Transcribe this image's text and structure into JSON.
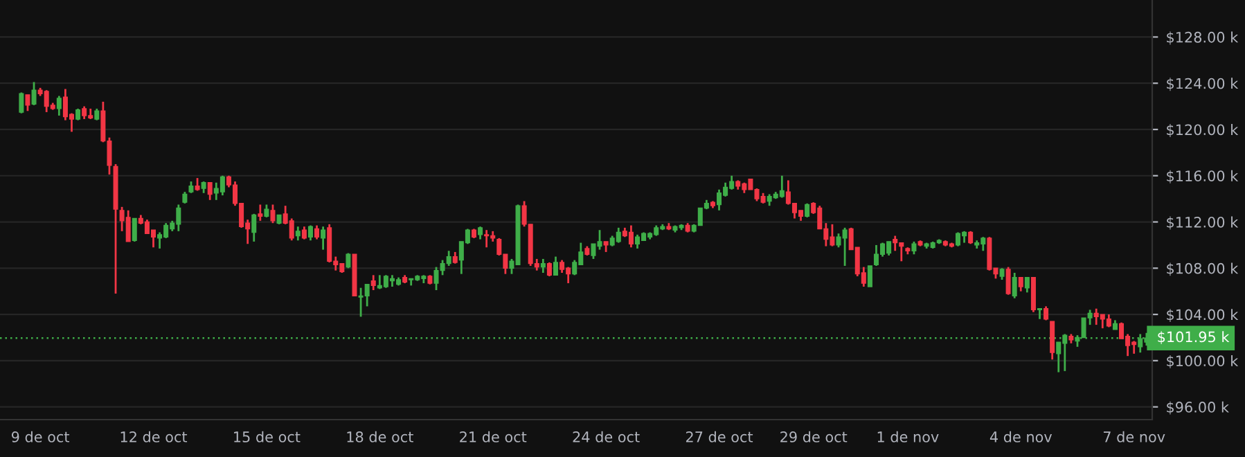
{
  "chart_data": {
    "type": "candlestick",
    "categories": [
      null,
      null,
      null,
      "9 de oct",
      null,
      null,
      null,
      null,
      null,
      null,
      null,
      null,
      null,
      null,
      null,
      null,
      null,
      null,
      null,
      null,
      null,
      "12 de oct",
      null,
      null,
      null,
      null,
      null,
      null,
      null,
      null,
      null,
      null,
      null,
      null,
      null,
      null,
      null,
      null,
      null,
      "15 de oct",
      null,
      null,
      null,
      null,
      null,
      null,
      null,
      null,
      null,
      null,
      null,
      null,
      null,
      null,
      null,
      null,
      null,
      "18 de oct",
      null,
      null,
      null,
      null,
      null,
      null,
      null,
      null,
      null,
      null,
      null,
      null,
      null,
      null,
      null,
      null,
      null,
      "21 de oct",
      null,
      null,
      null,
      null,
      null,
      null,
      null,
      null,
      null,
      null,
      null,
      null,
      null,
      null,
      null,
      null,
      null,
      "24 de oct",
      null,
      null,
      null,
      null,
      null,
      null,
      null,
      null,
      null,
      null,
      null,
      null,
      null,
      null,
      null,
      null,
      null,
      "27 de oct",
      null,
      null,
      null,
      null,
      null,
      null,
      null,
      null,
      null,
      null,
      null,
      null,
      null,
      null,
      "29 de oct",
      null,
      null,
      null,
      null,
      null,
      null,
      null,
      null,
      null,
      null,
      null,
      null,
      null,
      null,
      "1 de nov",
      null,
      null,
      null,
      null,
      null,
      null,
      null,
      null,
      null,
      null,
      null,
      null,
      null,
      null,
      null,
      null,
      null,
      "4 de nov",
      null,
      null,
      null,
      null,
      null,
      null,
      null,
      null,
      null,
      null,
      null,
      null,
      null,
      null,
      null,
      null,
      null,
      "7 de nov",
      null,
      null
    ],
    "ohlc": [
      [
        121.5,
        123.2,
        121.4,
        123.1
      ],
      [
        123.0,
        123.0,
        121.6,
        122.1
      ],
      [
        122.2,
        124.1,
        122.1,
        123.4
      ],
      [
        123.4,
        123.6,
        122.9,
        123.1
      ],
      [
        123.3,
        123.4,
        121.5,
        122.0
      ],
      [
        122.1,
        122.3,
        121.7,
        121.8
      ],
      [
        121.8,
        122.9,
        121.2,
        122.7
      ],
      [
        122.8,
        123.5,
        120.8,
        121.1
      ],
      [
        121.3,
        121.4,
        119.8,
        120.9
      ],
      [
        120.9,
        121.8,
        120.8,
        121.7
      ],
      [
        121.8,
        122.0,
        120.9,
        121.2
      ],
      [
        121.2,
        121.8,
        120.9,
        121.0
      ],
      [
        120.9,
        121.8,
        120.8,
        121.6
      ],
      [
        121.6,
        122.4,
        118.9,
        119.0
      ],
      [
        119.0,
        119.3,
        116.1,
        116.9
      ],
      [
        116.8,
        117.0,
        105.8,
        113.1
      ],
      [
        113.0,
        113.3,
        111.2,
        112.1
      ],
      [
        112.4,
        113.0,
        110.3,
        110.3
      ],
      [
        110.4,
        112.3,
        110.3,
        112.3
      ],
      [
        112.3,
        112.6,
        111.8,
        111.9
      ],
      [
        112.0,
        112.2,
        111.0,
        111.0
      ],
      [
        111.3,
        111.3,
        109.8,
        110.7
      ],
      [
        110.6,
        111.1,
        109.7,
        110.9
      ],
      [
        110.7,
        111.9,
        110.6,
        111.7
      ],
      [
        111.4,
        112.1,
        111.2,
        111.9
      ],
      [
        111.8,
        113.5,
        111.2,
        113.2
      ],
      [
        113.7,
        114.6,
        113.6,
        114.4
      ],
      [
        114.6,
        115.5,
        114.5,
        115.1
      ],
      [
        115.1,
        115.8,
        114.7,
        114.8
      ],
      [
        114.9,
        115.5,
        114.5,
        115.4
      ],
      [
        115.4,
        115.4,
        113.9,
        114.4
      ],
      [
        114.5,
        115.4,
        113.9,
        114.9
      ],
      [
        114.6,
        116.0,
        114.3,
        115.9
      ],
      [
        115.9,
        116.0,
        115.0,
        115.2
      ],
      [
        115.2,
        115.5,
        113.4,
        113.6
      ],
      [
        113.6,
        113.6,
        111.5,
        111.6
      ],
      [
        111.9,
        112.2,
        110.1,
        111.4
      ],
      [
        111.1,
        112.7,
        110.3,
        112.6
      ],
      [
        112.7,
        113.5,
        112.1,
        112.5
      ],
      [
        112.5,
        113.5,
        112.4,
        113.1
      ],
      [
        113.0,
        113.5,
        111.9,
        112.1
      ],
      [
        111.9,
        112.6,
        111.8,
        112.6
      ],
      [
        112.7,
        113.4,
        111.8,
        111.9
      ],
      [
        112.1,
        112.3,
        110.4,
        110.6
      ],
      [
        110.8,
        111.6,
        110.4,
        111.2
      ],
      [
        111.3,
        111.6,
        110.5,
        110.6
      ],
      [
        110.7,
        111.7,
        110.4,
        111.6
      ],
      [
        111.4,
        111.7,
        110.5,
        110.7
      ],
      [
        110.6,
        111.6,
        109.6,
        111.3
      ],
      [
        111.5,
        111.8,
        108.5,
        108.6
      ],
      [
        108.6,
        109.0,
        107.8,
        108.3
      ],
      [
        108.4,
        108.4,
        107.6,
        107.7
      ],
      [
        108.1,
        109.3,
        108.0,
        109.2
      ],
      [
        109.2,
        109.2,
        105.6,
        105.6
      ],
      [
        105.5,
        106.3,
        103.8,
        105.6
      ],
      [
        105.6,
        106.6,
        104.7,
        106.6
      ],
      [
        106.9,
        107.4,
        106.1,
        106.5
      ],
      [
        106.3,
        107.4,
        106.2,
        106.5
      ],
      [
        106.4,
        107.4,
        106.3,
        107.3
      ],
      [
        106.9,
        107.4,
        106.4,
        107.1
      ],
      [
        106.6,
        107.2,
        106.5,
        107.0
      ],
      [
        107.2,
        107.4,
        106.7,
        106.8
      ],
      [
        107.0,
        107.1,
        106.5,
        107.1
      ],
      [
        107.0,
        107.4,
        106.9,
        107.3
      ],
      [
        107.1,
        107.4,
        106.7,
        107.3
      ],
      [
        107.3,
        107.4,
        106.6,
        106.7
      ],
      [
        106.7,
        108.1,
        106.1,
        107.8
      ],
      [
        107.8,
        108.7,
        107.4,
        108.4
      ],
      [
        108.4,
        109.5,
        108.2,
        109.0
      ],
      [
        109.0,
        109.4,
        108.4,
        108.5
      ],
      [
        108.7,
        110.3,
        107.5,
        110.3
      ],
      [
        110.2,
        111.4,
        110.1,
        111.3
      ],
      [
        111.3,
        111.4,
        110.6,
        110.7
      ],
      [
        110.9,
        111.6,
        110.5,
        111.5
      ],
      [
        110.9,
        111.3,
        109.8,
        110.8
      ],
      [
        110.8,
        111.2,
        110.3,
        110.6
      ],
      [
        110.5,
        110.6,
        109.1,
        109.2
      ],
      [
        109.2,
        109.2,
        107.5,
        108.0
      ],
      [
        108.0,
        108.8,
        107.5,
        108.6
      ],
      [
        108.3,
        113.5,
        108.3,
        113.4
      ],
      [
        113.4,
        113.8,
        111.6,
        111.8
      ],
      [
        111.8,
        111.8,
        108.2,
        108.4
      ],
      [
        108.4,
        108.8,
        107.8,
        108.1
      ],
      [
        108.1,
        108.8,
        107.6,
        108.4
      ],
      [
        108.4,
        108.5,
        107.3,
        107.4
      ],
      [
        107.4,
        109.0,
        107.4,
        108.5
      ],
      [
        108.5,
        108.7,
        107.6,
        107.9
      ],
      [
        108.0,
        108.1,
        106.7,
        107.5
      ],
      [
        107.5,
        108.7,
        107.4,
        108.5
      ],
      [
        108.3,
        110.2,
        108.3,
        109.4
      ],
      [
        109.7,
        109.9,
        109.1,
        109.2
      ],
      [
        109.1,
        110.1,
        108.8,
        110.1
      ],
      [
        109.9,
        111.3,
        109.6,
        110.3
      ],
      [
        110.3,
        110.3,
        109.4,
        110.0
      ],
      [
        110.0,
        110.8,
        109.9,
        110.6
      ],
      [
        110.3,
        111.5,
        110.2,
        111.1
      ],
      [
        111.2,
        111.5,
        110.7,
        110.8
      ],
      [
        111.1,
        111.7,
        109.8,
        110.1
      ],
      [
        110.1,
        110.9,
        109.7,
        110.7
      ],
      [
        110.4,
        111.1,
        110.4,
        111.0
      ],
      [
        110.7,
        111.1,
        110.5,
        111.0
      ],
      [
        110.9,
        111.7,
        110.8,
        111.5
      ],
      [
        111.4,
        111.8,
        111.3,
        111.6
      ],
      [
        111.6,
        111.9,
        111.3,
        111.4
      ],
      [
        111.3,
        111.7,
        111.1,
        111.6
      ],
      [
        111.5,
        111.8,
        111.3,
        111.7
      ],
      [
        111.7,
        111.9,
        111.1,
        111.2
      ],
      [
        111.2,
        111.8,
        111.1,
        111.7
      ],
      [
        111.7,
        113.2,
        111.7,
        113.2
      ],
      [
        113.2,
        113.9,
        113.1,
        113.6
      ],
      [
        113.7,
        113.8,
        113.2,
        113.4
      ],
      [
        113.5,
        114.8,
        113.0,
        114.5
      ],
      [
        114.3,
        115.4,
        114.2,
        115.0
      ],
      [
        114.9,
        116.0,
        114.8,
        115.5
      ],
      [
        115.5,
        115.6,
        114.8,
        115.1
      ],
      [
        115.3,
        115.4,
        114.5,
        114.8
      ],
      [
        115.7,
        115.7,
        114.8,
        114.8
      ],
      [
        114.8,
        114.9,
        113.8,
        114.0
      ],
      [
        114.2,
        114.5,
        113.6,
        113.7
      ],
      [
        113.8,
        114.4,
        113.4,
        114.2
      ],
      [
        114.1,
        114.6,
        114.0,
        114.4
      ],
      [
        114.2,
        116.0,
        114.1,
        114.7
      ],
      [
        114.6,
        115.6,
        113.5,
        113.6
      ],
      [
        113.6,
        113.6,
        112.3,
        112.8
      ],
      [
        113.0,
        113.0,
        112.1,
        112.5
      ],
      [
        112.5,
        113.6,
        112.4,
        113.5
      ],
      [
        113.6,
        113.7,
        112.7,
        112.8
      ],
      [
        113.2,
        113.4,
        111.4,
        111.4
      ],
      [
        111.4,
        111.9,
        109.9,
        110.5
      ],
      [
        110.7,
        111.8,
        109.9,
        110.0
      ],
      [
        110.0,
        111.0,
        109.8,
        110.7
      ],
      [
        110.6,
        111.5,
        108.2,
        111.3
      ],
      [
        111.4,
        111.5,
        109.6,
        109.6
      ],
      [
        109.8,
        109.8,
        107.3,
        107.5
      ],
      [
        107.6,
        108.1,
        106.4,
        106.7
      ],
      [
        106.4,
        108.2,
        106.4,
        108.2
      ],
      [
        108.3,
        110.0,
        108.2,
        109.2
      ],
      [
        109.2,
        110.2,
        109.0,
        110.1
      ],
      [
        109.3,
        110.3,
        109.1,
        110.3
      ],
      [
        110.5,
        110.8,
        109.5,
        110.2
      ],
      [
        110.2,
        110.2,
        108.6,
        109.9
      ],
      [
        109.7,
        109.8,
        109.2,
        109.5
      ],
      [
        109.5,
        110.3,
        109.2,
        110.1
      ],
      [
        110.3,
        110.4,
        109.9,
        110.0
      ],
      [
        109.9,
        110.2,
        109.7,
        110.1
      ],
      [
        109.8,
        110.3,
        109.7,
        110.2
      ],
      [
        110.2,
        110.5,
        110.1,
        110.4
      ],
      [
        110.3,
        110.4,
        109.9,
        110.0
      ],
      [
        110.1,
        110.2,
        109.8,
        109.9
      ],
      [
        110.0,
        111.1,
        109.9,
        111.0
      ],
      [
        110.8,
        111.2,
        110.2,
        111.1
      ],
      [
        111.1,
        111.2,
        110.1,
        110.2
      ],
      [
        110.0,
        110.4,
        109.7,
        110.2
      ],
      [
        110.1,
        110.7,
        109.5,
        110.6
      ],
      [
        110.6,
        110.7,
        107.8,
        107.9
      ],
      [
        108.0,
        108.0,
        107.1,
        107.5
      ],
      [
        107.3,
        108.0,
        107.0,
        107.9
      ],
      [
        107.9,
        108.1,
        105.7,
        105.8
      ],
      [
        105.6,
        107.6,
        105.4,
        107.2
      ],
      [
        107.2,
        107.2,
        106.0,
        106.4
      ],
      [
        106.3,
        107.2,
        105.9,
        107.2
      ],
      [
        107.2,
        107.2,
        104.2,
        104.4
      ],
      [
        104.4,
        104.5,
        103.6,
        104.5
      ],
      [
        104.5,
        104.7,
        103.5,
        103.6
      ],
      [
        103.4,
        103.4,
        100.1,
        100.7
      ],
      [
        100.6,
        101.6,
        99.0,
        101.6
      ],
      [
        101.5,
        102.3,
        99.1,
        102.2
      ],
      [
        102.1,
        102.3,
        101.5,
        101.8
      ],
      [
        101.7,
        102.2,
        101.2,
        102.0
      ],
      [
        102.0,
        103.7,
        102.0,
        103.7
      ],
      [
        103.7,
        104.4,
        103.1,
        104.1
      ],
      [
        104.1,
        104.5,
        103.1,
        103.8
      ],
      [
        104.0,
        104.0,
        102.8,
        103.6
      ],
      [
        103.6,
        104.0,
        102.9,
        103.0
      ],
      [
        102.7,
        103.5,
        102.7,
        103.2
      ],
      [
        103.2,
        103.3,
        101.9,
        101.9
      ],
      [
        102.1,
        102.3,
        100.4,
        101.3
      ],
      [
        101.6,
        101.7,
        100.6,
        101.4
      ],
      [
        101.2,
        102.3,
        100.7,
        101.9
      ],
      [
        101.6,
        102.4,
        101.3,
        101.95
      ]
    ],
    "colors": [
      "#3fae49",
      "#f23645",
      "#3fae49",
      "#f23645",
      "#f23645",
      "#f23645",
      "#3fae49",
      "#f23645",
      "#f23645",
      "#3fae49",
      "#f23645",
      "#f23645",
      "#3fae49",
      "#f23645",
      "#f23645",
      "#f23645",
      "#f23645",
      "#f23645",
      "#3fae49",
      "#f23645",
      "#f23645",
      "#f23645",
      "#3fae49",
      "#3fae49",
      "#3fae49",
      "#3fae49",
      "#3fae49",
      "#3fae49",
      "#f23645",
      "#3fae49",
      "#f23645",
      "#3fae49",
      "#3fae49",
      "#f23645",
      "#f23645",
      "#f23645",
      "#f23645",
      "#3fae49",
      "#f23645",
      "#3fae49",
      "#f23645",
      "#3fae49",
      "#f23645",
      "#f23645",
      "#3fae49",
      "#f23645",
      "#3fae49",
      "#f23645",
      "#3fae49",
      "#f23645",
      "#f23645",
      "#f23645",
      "#3fae49",
      "#f23645",
      "#3fae49",
      "#3fae49",
      "#f23645",
      "#3fae49",
      "#3fae49",
      "#3fae49",
      "#3fae49",
      "#f23645",
      "#3fae49",
      "#3fae49",
      "#3fae49",
      "#f23645",
      "#3fae49",
      "#3fae49",
      "#3fae49",
      "#f23645",
      "#3fae49",
      "#3fae49",
      "#f23645",
      "#3fae49",
      "#f23645",
      "#f23645",
      "#f23645",
      "#f23645",
      "#3fae49",
      "#3fae49",
      "#f23645",
      "#f23645",
      "#f23645",
      "#3fae49",
      "#f23645",
      "#3fae49",
      "#f23645",
      "#f23645",
      "#3fae49",
      "#3fae49",
      "#f23645",
      "#3fae49",
      "#3fae49",
      "#f23645",
      "#3fae49",
      "#3fae49",
      "#f23645",
      "#f23645",
      "#3fae49",
      "#3fae49",
      "#3fae49",
      "#3fae49",
      "#3fae49",
      "#f23645",
      "#3fae49",
      "#3fae49",
      "#f23645",
      "#3fae49",
      "#3fae49",
      "#3fae49",
      "#f23645",
      "#3fae49",
      "#3fae49",
      "#3fae49",
      "#f23645",
      "#f23645",
      "#f23645",
      "#f23645",
      "#f23645",
      "#3fae49",
      "#3fae49",
      "#3fae49",
      "#f23645",
      "#f23645",
      "#f23645",
      "#3fae49",
      "#f23645",
      "#f23645",
      "#f23645",
      "#f23645",
      "#3fae49",
      "#3fae49",
      "#f23645",
      "#f23645",
      "#f23645",
      "#3fae49",
      "#3fae49",
      "#3fae49",
      "#3fae49",
      "#f23645",
      "#f23645",
      "#f23645",
      "#3fae49",
      "#f23645",
      "#3fae49",
      "#3fae49",
      "#3fae49",
      "#f23645",
      "#f23645",
      "#3fae49",
      "#3fae49",
      "#f23645",
      "#3fae49",
      "#3fae49",
      "#f23645",
      "#f23645",
      "#3fae49",
      "#f23645",
      "#3fae49",
      "#f23645",
      "#3fae49",
      "#f23645",
      "#3fae49",
      "#f23645",
      "#f23645",
      "#3fae49",
      "#3fae49",
      "#f23645",
      "#3fae49",
      "#3fae49",
      "#3fae49",
      "#f23645",
      "#f23645",
      "#f23645",
      "#3fae49",
      "#f23645",
      "#f23645",
      "#f23645",
      "#3fae49",
      "#3fae49"
    ],
    "ylim": [
      94.9,
      131.2
    ],
    "yticks": [
      {
        "value": 96,
        "label": "$96.00 k"
      },
      {
        "value": 100,
        "label": "$100.00 k"
      },
      {
        "value": 104,
        "label": "$104.00 k"
      },
      {
        "value": 108,
        "label": "$108.00 k"
      },
      {
        "value": 112,
        "label": "$112.00 k"
      },
      {
        "value": 116,
        "label": "$116.00 k"
      },
      {
        "value": 120,
        "label": "$120.00 k"
      },
      {
        "value": 124,
        "label": "$124.00 k"
      },
      {
        "value": 128,
        "label": "$128.00 k"
      }
    ],
    "grid": "y",
    "ref_lines": [
      {
        "axis": "y",
        "value": 101.95,
        "label": "$101.95 k",
        "color": "#3fae49",
        "line_style": "dotted"
      }
    ]
  }
}
